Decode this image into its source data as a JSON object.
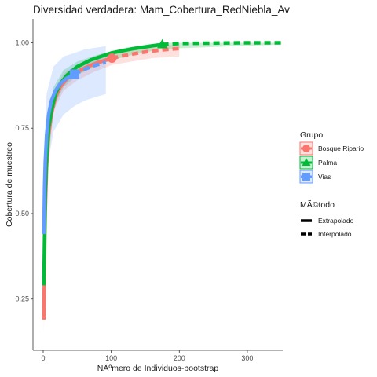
{
  "chart_data": {
    "type": "line",
    "title": "Diversidad verdadera: Mam_Cobertura_RedNiebla_Av",
    "xlabel": "NÃºmero de Individuos-bootstrap",
    "ylabel": "Cobertura de muestreo",
    "xlim": [
      -15,
      352
    ],
    "ylim": [
      0.1,
      1.07
    ],
    "xticks": [
      0,
      100,
      200,
      300
    ],
    "yticks": [
      0.25,
      0.5,
      0.75,
      1.0
    ],
    "ytick_labels": [
      "0.25",
      "0.50",
      "0.75",
      "1.00"
    ],
    "grid": false,
    "legend_placement": "right",
    "legends": [
      {
        "title": "Grupo",
        "entries": [
          "Bosque Ripario",
          "Palma",
          "Vias"
        ]
      },
      {
        "title": "MÃ©todo",
        "entries": [
          "Extrapolado",
          "Interpolado"
        ]
      }
    ],
    "series": [
      {
        "name": "Bosque Ripario",
        "color": "#F8766D",
        "marker": "circle",
        "observed": {
          "x": 101,
          "y": 0.955
        },
        "interpolated": {
          "x": [
            1,
            2,
            3,
            5,
            8,
            12,
            18,
            25,
            35,
            50,
            65,
            80,
            101
          ],
          "y": [
            0.19,
            0.37,
            0.5,
            0.64,
            0.73,
            0.79,
            0.84,
            0.87,
            0.895,
            0.915,
            0.93,
            0.942,
            0.955
          ]
        },
        "extrapolated": {
          "x": [
            101,
            120,
            140,
            160,
            180,
            200
          ],
          "y": [
            0.955,
            0.963,
            0.97,
            0.976,
            0.98,
            0.983
          ]
        },
        "band": {
          "x": [
            1,
            5,
            15,
            30,
            50,
            75,
            101,
            130,
            160,
            200
          ],
          "lower": [
            0.15,
            0.58,
            0.8,
            0.86,
            0.89,
            0.915,
            0.935,
            0.945,
            0.955,
            0.96
          ],
          "upper": [
            0.23,
            0.69,
            0.86,
            0.91,
            0.935,
            0.96,
            0.975,
            0.985,
            0.99,
            0.995
          ]
        }
      },
      {
        "name": "Palma",
        "color": "#00BA38",
        "marker": "triangle",
        "observed": {
          "x": 175,
          "y": 0.995
        },
        "interpolated": {
          "x": [
            1,
            2,
            3,
            5,
            8,
            12,
            18,
            25,
            35,
            50,
            70,
            100,
            130,
            160,
            175
          ],
          "y": [
            0.29,
            0.43,
            0.55,
            0.66,
            0.75,
            0.8,
            0.85,
            0.88,
            0.905,
            0.93,
            0.95,
            0.97,
            0.982,
            0.991,
            0.995
          ]
        },
        "extrapolated": {
          "x": [
            175,
            200,
            250,
            300,
            350
          ],
          "y": [
            0.995,
            0.998,
            0.999,
            1.0,
            1.0
          ]
        },
        "band": {
          "x": [
            1,
            5,
            15,
            30,
            50,
            80,
            120,
            175,
            350
          ],
          "lower": [
            0.25,
            0.62,
            0.81,
            0.87,
            0.905,
            0.935,
            0.96,
            0.982,
            0.995
          ],
          "upper": [
            0.33,
            0.7,
            0.87,
            0.92,
            0.945,
            0.965,
            0.985,
            1.0,
            1.0
          ]
        }
      },
      {
        "name": "Vias",
        "color": "#619CFF",
        "marker": "square",
        "observed": {
          "x": 46,
          "y": 0.908
        },
        "interpolated": {
          "x": [
            1,
            2,
            3,
            5,
            8,
            12,
            18,
            25,
            35,
            46
          ],
          "y": [
            0.44,
            0.58,
            0.65,
            0.73,
            0.79,
            0.83,
            0.86,
            0.88,
            0.897,
            0.908
          ]
        },
        "extrapolated": {
          "x": [
            46,
            60,
            75,
            92
          ],
          "y": [
            0.908,
            0.922,
            0.933,
            0.943
          ]
        },
        "band": {
          "x": [
            1,
            5,
            15,
            30,
            46,
            60,
            75,
            92
          ],
          "lower": [
            0.4,
            0.62,
            0.74,
            0.79,
            0.815,
            0.83,
            0.84,
            0.85
          ],
          "upper": [
            0.66,
            0.85,
            0.93,
            0.96,
            0.97,
            0.98,
            0.985,
            0.99
          ]
        }
      }
    ]
  }
}
